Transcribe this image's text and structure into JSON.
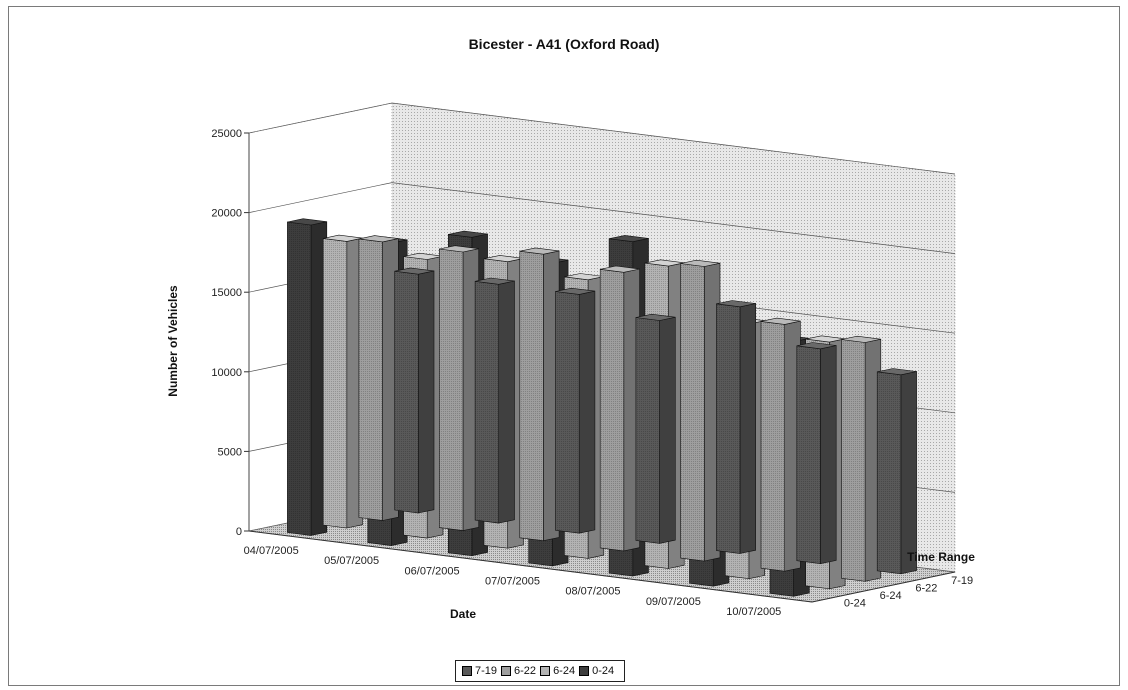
{
  "chart_data": {
    "type": "bar",
    "subtype": "3d-clustered-column",
    "title": "Bicester - A41 (Oxford Road)",
    "xlabel": "Date",
    "ylabel": "Number of Vehicles",
    "zlabel": "Time Range",
    "categories": [
      "04/07/2005",
      "05/07/2005",
      "06/07/2005",
      "07/07/2005",
      "08/07/2005",
      "09/07/2005",
      "10/07/2005"
    ],
    "series": [
      {
        "name": "7-19",
        "values": [
          15000,
          15000,
          15000,
          14000,
          15500,
          13500,
          12500
        ],
        "color": "#595959"
      },
      {
        "name": "6-22",
        "values": [
          17500,
          17500,
          18000,
          17500,
          18500,
          15500,
          15000
        ],
        "color": "#9e9e9e"
      },
      {
        "name": "6-24",
        "values": [
          18000,
          17500,
          18000,
          17500,
          19000,
          16000,
          15500
        ],
        "color": "#b3b3b3"
      },
      {
        "name": "0-24",
        "values": [
          19500,
          19000,
          20000,
          19000,
          21000,
          16500,
          16000
        ],
        "color": "#3d3d3d"
      }
    ],
    "ylim": [
      0,
      25000
    ],
    "yticks": [
      "0",
      "5000",
      "10000",
      "15000",
      "20000",
      "25000"
    ],
    "grid": true,
    "legend_position": "bottom"
  }
}
